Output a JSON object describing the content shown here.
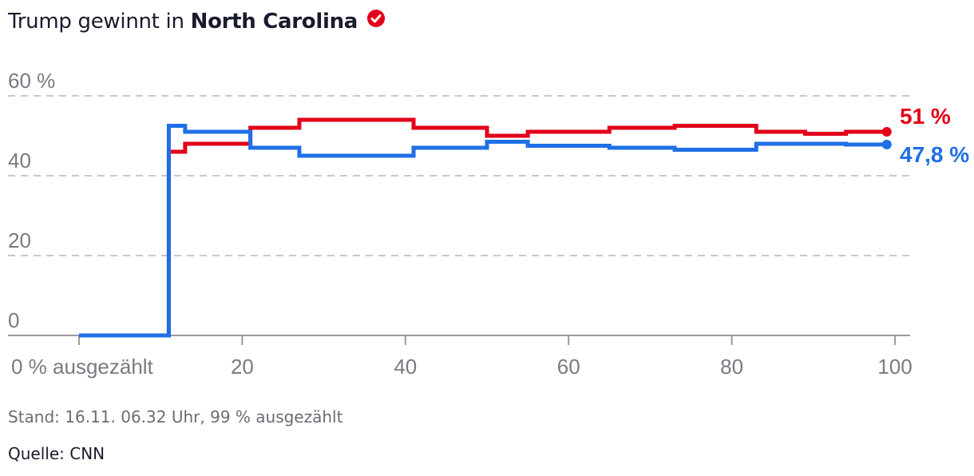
{
  "header": {
    "title_prefix": "Trump gewinnt in",
    "title_state": "North Carolina",
    "badge_icon": "checkmark-circle-icon"
  },
  "footer": {
    "stand": "Stand: 16.11. 06.32 Uhr, 99 % ausgezählt",
    "source": "Quelle: CNN"
  },
  "colors": {
    "red": "#e2001a",
    "blue": "#1f6fe5",
    "grid": "#c8c8cc",
    "axis": "#9a9aa0"
  },
  "chart_data": {
    "type": "line",
    "step": true,
    "xlim": [
      0,
      100
    ],
    "ylim": [
      0,
      60
    ],
    "x_ticks": [
      {
        "value": 0,
        "label": "0 % ausgezählt"
      },
      {
        "value": 20,
        "label": "20"
      },
      {
        "value": 40,
        "label": "40"
      },
      {
        "value": 60,
        "label": "60"
      },
      {
        "value": 80,
        "label": "80"
      },
      {
        "value": 100,
        "label": "100"
      }
    ],
    "y_ticks": [
      {
        "value": 0,
        "label": "0"
      },
      {
        "value": 20,
        "label": "20"
      },
      {
        "value": 40,
        "label": "40"
      },
      {
        "value": 60,
        "label": "60 %"
      }
    ],
    "grid": true,
    "series": [
      {
        "color": "#e2001a",
        "end_label": "51 %",
        "points": [
          [
            0,
            0
          ],
          [
            11,
            0
          ],
          [
            11,
            46
          ],
          [
            13,
            48
          ],
          [
            21,
            52
          ],
          [
            27,
            54
          ],
          [
            41,
            52
          ],
          [
            50,
            50
          ],
          [
            55,
            51
          ],
          [
            65,
            52
          ],
          [
            73,
            52.5
          ],
          [
            83,
            51
          ],
          [
            89,
            50.5
          ],
          [
            94,
            51
          ],
          [
            99,
            51
          ]
        ]
      },
      {
        "color": "#1f6fe5",
        "end_label": "47,8 %",
        "points": [
          [
            0,
            0
          ],
          [
            11,
            0
          ],
          [
            11,
            52.5
          ],
          [
            13,
            51
          ],
          [
            21,
            47
          ],
          [
            27,
            45
          ],
          [
            41,
            47
          ],
          [
            50,
            48.5
          ],
          [
            55,
            47.5
          ],
          [
            65,
            47
          ],
          [
            73,
            46.5
          ],
          [
            83,
            48
          ],
          [
            89,
            48
          ],
          [
            94,
            47.8
          ],
          [
            99,
            47.8
          ]
        ]
      }
    ]
  }
}
